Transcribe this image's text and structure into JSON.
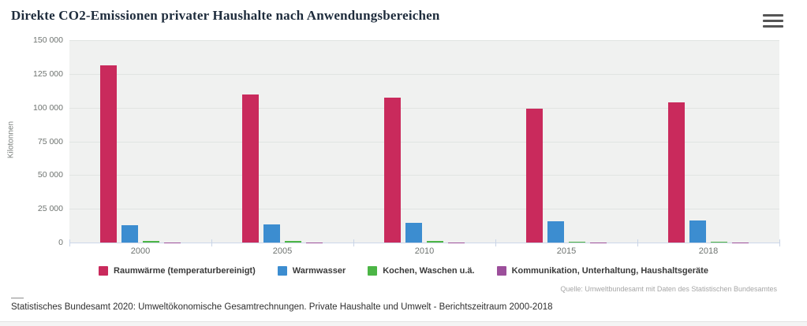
{
  "header": {
    "title": "Direkte CO2-Emissionen privater Haushalte nach Anwendungsbereichen",
    "menu_icon": "hamburger-menu-icon"
  },
  "chart_data": {
    "type": "bar",
    "title": "Direkte CO2-Emissionen privater Haushalte nach Anwendungsbereichen",
    "xlabel": "",
    "ylabel": "Kilotonnen",
    "ylim": [
      0,
      150000
    ],
    "ytick_step": 25000,
    "ytick_labels": [
      "150 000",
      "125 000",
      "100 000",
      "75 000",
      "50 000",
      "25 000",
      "0"
    ],
    "grid": true,
    "legend_position": "bottom",
    "categories": [
      "2000",
      "2005",
      "2010",
      "2015",
      "2018"
    ],
    "series": [
      {
        "name": "Raumwärme (temperaturbereinigt)",
        "color": "#c92a5c",
        "values": [
          131500,
          109500,
          107500,
          99500,
          104000
        ]
      },
      {
        "name": "Warmwasser",
        "color": "#3c8dd0",
        "values": [
          13000,
          13200,
          14500,
          15500,
          16500
        ]
      },
      {
        "name": "Kochen, Waschen u.ä.",
        "color": "#4cb546",
        "values": [
          900,
          900,
          1100,
          600,
          600
        ]
      },
      {
        "name": "Kommunikation, Unterhaltung, Haushaltsgeräte",
        "color": "#9c4f9b",
        "values": [
          150,
          150,
          150,
          150,
          150
        ]
      }
    ],
    "source": "Quelle: Umweltbundesamt mit Daten des Statistischen Bundesamtes"
  },
  "footer": {
    "note": "Statistisches Bundesamt 2020: Umweltökonomische Gesamtrechnungen. Private Haushalte und Umwelt - Berichtszeitraum 2000-2018"
  }
}
